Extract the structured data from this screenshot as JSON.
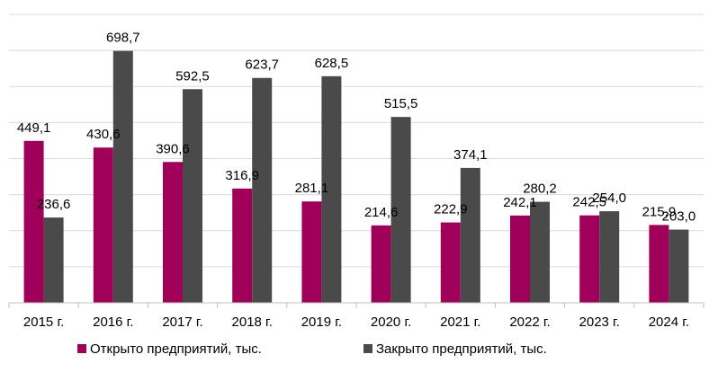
{
  "chart_data": {
    "type": "bar",
    "categories": [
      "2015 г.",
      "2016 г.",
      "2017 г.",
      "2018 г.",
      "2019 г.",
      "2020 г.",
      "2021 г.",
      "2022 г.",
      "2023 г.",
      "2024 г."
    ],
    "series": [
      {
        "name": "Открыто предприятий, тыс.",
        "values": [
          449.1,
          430.6,
          390.6,
          316.9,
          281.1,
          214.6,
          222.9,
          242.1,
          242.5,
          215.9
        ],
        "labels": [
          "449,1",
          "430,6",
          "390,6",
          "316,9",
          "281,1",
          "214,6",
          "222,9",
          "242,1",
          "242,5",
          "215,9"
        ],
        "color": "#a0005a"
      },
      {
        "name": "Закрыто предприятий, тыс.",
        "values": [
          236.6,
          698.7,
          592.5,
          623.7,
          628.5,
          515.5,
          374.1,
          280.2,
          254.0,
          203.0
        ],
        "labels": [
          "236,6",
          "698,7",
          "592,5",
          "623,7",
          "628,5",
          "515,5",
          "374,1",
          "280,2",
          "254,0",
          "203,0"
        ],
        "color": "#4a4a4a"
      }
    ],
    "ylim": [
      0,
      800
    ],
    "grid": true,
    "y_tick_labels_shown": false,
    "legend_position": "bottom-left",
    "title": "",
    "xlabel": "",
    "ylabel": ""
  }
}
